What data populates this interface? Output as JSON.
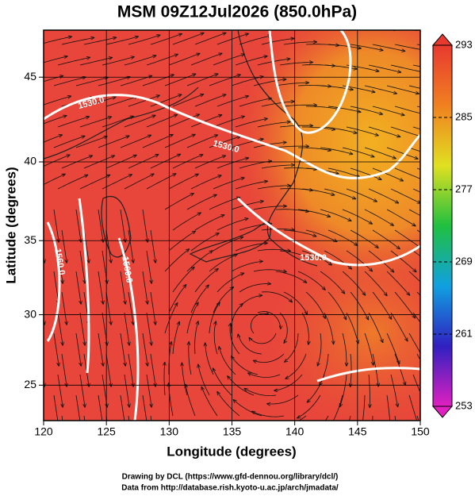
{
  "map": {
    "title": "MSM 09Z12Jul2026 (850.0hPa)",
    "x_label": "Longitude (degrees)",
    "y_label": "Latitude  (degrees)",
    "projection": "mercator",
    "xlim": [
      120,
      150
    ],
    "ylim": [
      22.4,
      47.6
    ],
    "xticks": [
      120,
      125,
      130,
      135,
      140,
      145,
      150
    ],
    "yticks": [
      25,
      30,
      35,
      40,
      45
    ],
    "grid": true,
    "contour_labels": [
      "1530.0",
      "1530.0",
      "1530.0",
      "1560.0",
      "1560.0"
    ],
    "colorbar": {
      "lim": [
        253,
        293
      ],
      "ticks": [
        253,
        261,
        269,
        277,
        285,
        293
      ],
      "colors": [
        "#e020c0",
        "#3020c0",
        "#10a0e0",
        "#20c040",
        "#e0e020",
        "#f08020",
        "#e83a30"
      ]
    },
    "credits": [
      "Drawing by DCL (https://www.gfd-dennou.org/library/dcl/)",
      "Data from http://database.rish.kyoto-u.ac.jp/arch/jmadata/"
    ]
  }
}
